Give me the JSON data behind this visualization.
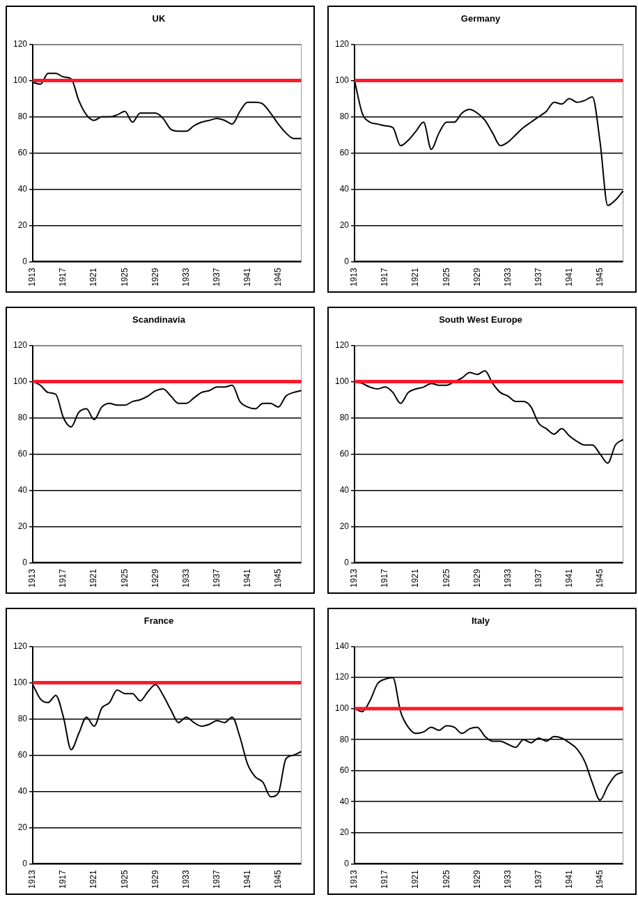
{
  "chart_data": [
    {
      "type": "line",
      "title": "UK",
      "categories": [
        "1913",
        null,
        null,
        null,
        "1917",
        null,
        null,
        null,
        "1921",
        null,
        null,
        null,
        "1925",
        null,
        null,
        null,
        "1929",
        null,
        null,
        null,
        "1933",
        null,
        null,
        null,
        "1937",
        null,
        null,
        null,
        "1941",
        null,
        null,
        null,
        "1945",
        null,
        null,
        null
      ],
      "series": [
        {
          "color": "#000000",
          "values": [
            99,
            98,
            104,
            104,
            102,
            101,
            89,
            81,
            78,
            80,
            80,
            81,
            83,
            77,
            82,
            82,
            82,
            79,
            73,
            72,
            72,
            75,
            77,
            78,
            79,
            78,
            76,
            83,
            88,
            88,
            87,
            82,
            76,
            71,
            68,
            68
          ]
        }
      ],
      "ylim": [
        0,
        120
      ],
      "yticks": [
        0,
        20,
        40,
        60,
        80,
        100,
        120
      ],
      "grid": "y",
      "ref_lines": [
        {
          "axis": "y",
          "value": 100,
          "color": "#ff1a2a"
        }
      ]
    },
    {
      "type": "line",
      "title": "Germany",
      "categories": [
        "1913",
        null,
        null,
        null,
        "1917",
        null,
        null,
        null,
        "1921",
        null,
        null,
        null,
        "1925",
        null,
        null,
        null,
        "1929",
        null,
        null,
        null,
        "1933",
        null,
        null,
        null,
        "1937",
        null,
        null,
        null,
        "1941",
        null,
        null,
        null,
        "1945",
        null,
        null,
        null
      ],
      "series": [
        {
          "color": "#000000",
          "values": [
            100,
            82,
            77,
            76,
            75,
            74,
            64,
            67,
            72,
            77,
            62,
            71,
            77,
            77,
            82,
            84,
            82,
            78,
            71,
            64,
            66,
            70,
            74,
            77,
            80,
            83,
            88,
            87,
            90,
            88,
            89,
            91,
            66,
            31,
            34,
            39
          ]
        }
      ],
      "ylim": [
        0,
        120
      ],
      "yticks": [
        0,
        20,
        40,
        60,
        80,
        100,
        120
      ],
      "grid": "y",
      "ref_lines": [
        {
          "axis": "y",
          "value": 100,
          "color": "#ff1a2a"
        }
      ]
    },
    {
      "type": "line",
      "title": "Scandinavia",
      "categories": [
        "1913",
        null,
        null,
        null,
        "1917",
        null,
        null,
        null,
        "1921",
        null,
        null,
        null,
        "1925",
        null,
        null,
        null,
        "1929",
        null,
        null,
        null,
        "1933",
        null,
        null,
        null,
        "1937",
        null,
        null,
        null,
        "1941",
        null,
        null,
        null,
        "1945",
        null,
        null,
        null
      ],
      "series": [
        {
          "color": "#000000",
          "values": [
            100,
            98,
            94,
            93,
            80,
            75,
            83,
            85,
            79,
            86,
            88,
            87,
            87,
            89,
            90,
            92,
            95,
            96,
            92,
            88,
            88,
            91,
            94,
            95,
            97,
            97,
            98,
            89,
            86,
            85,
            88,
            88,
            86,
            92,
            94,
            95
          ]
        }
      ],
      "ylim": [
        0,
        120
      ],
      "yticks": [
        0,
        20,
        40,
        60,
        80,
        100,
        120
      ],
      "grid": "y",
      "ref_lines": [
        {
          "axis": "y",
          "value": 100,
          "color": "#ff1a2a"
        }
      ]
    },
    {
      "type": "line",
      "title": "South West Europe",
      "categories": [
        "1913",
        null,
        null,
        null,
        "1917",
        null,
        null,
        null,
        "1921",
        null,
        null,
        null,
        "1925",
        null,
        null,
        null,
        "1929",
        null,
        null,
        null,
        "1933",
        null,
        null,
        null,
        "1937",
        null,
        null,
        null,
        "1941",
        null,
        null,
        null,
        "1945",
        null,
        null,
        null
      ],
      "series": [
        {
          "color": "#000000",
          "values": [
            100,
            99,
            97,
            96,
            97,
            94,
            88,
            94,
            96,
            97,
            99,
            98,
            98,
            100,
            102,
            105,
            104,
            106,
            99,
            94,
            92,
            89,
            89,
            86,
            77,
            74,
            71,
            74,
            70,
            67,
            65,
            65,
            60,
            55,
            65,
            68
          ]
        }
      ],
      "ylim": [
        0,
        120
      ],
      "yticks": [
        0,
        20,
        40,
        60,
        80,
        100,
        120
      ],
      "grid": "y",
      "ref_lines": [
        {
          "axis": "y",
          "value": 100,
          "color": "#ff1a2a"
        }
      ]
    },
    {
      "type": "line",
      "title": "France",
      "categories": [
        "1913",
        null,
        null,
        null,
        "1917",
        null,
        null,
        null,
        "1921",
        null,
        null,
        null,
        "1925",
        null,
        null,
        null,
        "1929",
        null,
        null,
        null,
        "1933",
        null,
        null,
        null,
        "1937",
        null,
        null,
        null,
        "1941",
        null,
        null,
        null,
        "1945",
        null,
        null,
        null
      ],
      "series": [
        {
          "color": "#000000",
          "values": [
            99,
            91,
            89,
            93,
            81,
            63,
            72,
            81,
            76,
            86,
            89,
            96,
            94,
            94,
            90,
            95,
            99,
            93,
            85,
            78,
            81,
            78,
            76,
            77,
            79,
            78,
            81,
            70,
            55,
            48,
            45,
            37,
            39,
            58,
            60,
            62
          ]
        }
      ],
      "ylim": [
        0,
        120
      ],
      "yticks": [
        0,
        20,
        40,
        60,
        80,
        100,
        120
      ],
      "grid": "y",
      "ref_lines": [
        {
          "axis": "y",
          "value": 100,
          "color": "#ff1a2a"
        }
      ]
    },
    {
      "type": "line",
      "title": "Italy",
      "categories": [
        "1913",
        null,
        null,
        null,
        "1917",
        null,
        null,
        null,
        "1921",
        null,
        null,
        null,
        "1925",
        null,
        null,
        null,
        "1929",
        null,
        null,
        null,
        "1933",
        null,
        null,
        null,
        "1937",
        null,
        null,
        null,
        "1941",
        null,
        null,
        null,
        "1945",
        null,
        null,
        null
      ],
      "series": [
        {
          "color": "#000000",
          "values": [
            100,
            98,
            105,
            116,
            119,
            120,
            98,
            88,
            84,
            85,
            88,
            86,
            89,
            88,
            84,
            87,
            88,
            82,
            79,
            79,
            77,
            75,
            80,
            78,
            81,
            79,
            82,
            81,
            78,
            74,
            66,
            52,
            41,
            50,
            57,
            59
          ]
        }
      ],
      "ylim": [
        0,
        140
      ],
      "yticks": [
        0,
        20,
        40,
        60,
        80,
        100,
        120,
        140
      ],
      "grid": "y",
      "ref_lines": [
        {
          "axis": "y",
          "value": 100,
          "color": "#ff1a2a"
        }
      ]
    }
  ]
}
